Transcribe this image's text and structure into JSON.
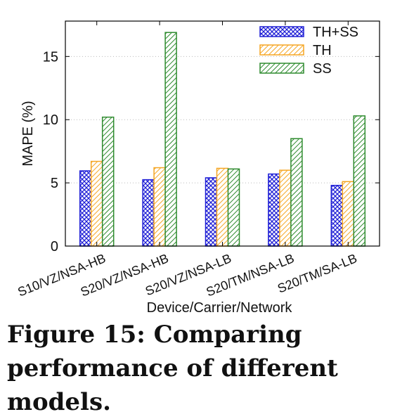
{
  "chart_data": {
    "type": "bar",
    "categories": [
      "S10/VZ/NSA-HB",
      "S20/VZ/NSA-HB",
      "S20/VZ/NSA-LB",
      "S20/TM/NSA-LB",
      "S20/TM/SA-LB"
    ],
    "series": [
      {
        "name": "TH+SS",
        "values": [
          5.95,
          5.25,
          5.4,
          5.7,
          4.8
        ],
        "color": "#1f1fd6",
        "pattern": "crosshatch"
      },
      {
        "name": "TH",
        "values": [
          6.7,
          6.2,
          6.15,
          6.0,
          5.1
        ],
        "color": "#f5a623",
        "pattern": "diagonal"
      },
      {
        "name": "SS",
        "values": [
          10.2,
          16.9,
          6.1,
          8.5,
          10.3
        ],
        "color": "#2e8b2e",
        "pattern": "diagonal"
      }
    ],
    "title": "",
    "xlabel": "Device/Carrier/Network",
    "ylabel": "MAPE (%)",
    "ylim": [
      0,
      17.8
    ],
    "yticks": [
      0,
      5,
      10,
      15
    ],
    "grid": "horizontal dotted",
    "legend": "top-right"
  },
  "caption": "Figure 15: Comparing performance of different models."
}
